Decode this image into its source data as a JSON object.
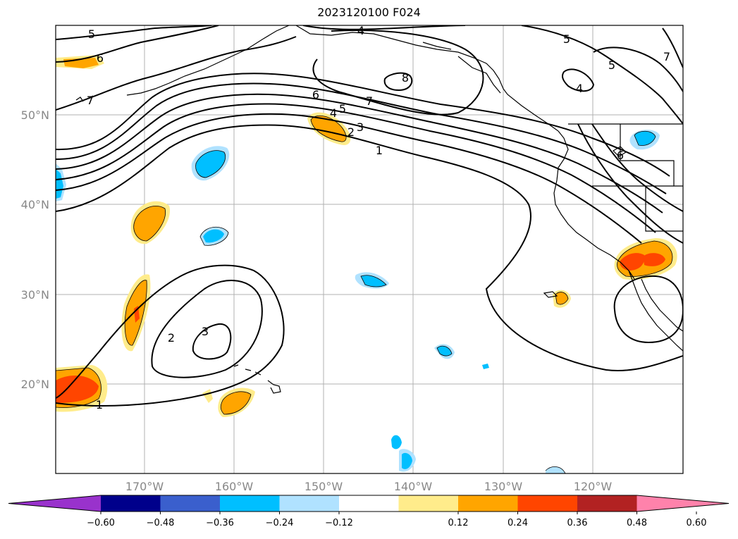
{
  "title": "2023120100 F024",
  "map": {
    "lat_labels": [
      "50°N",
      "40°N",
      "30°N",
      "20°N"
    ],
    "lon_labels": [
      "170°W",
      "160°W",
      "150°W",
      "140°W",
      "130°W",
      "120°W"
    ]
  },
  "contour_labels": [
    "5",
    "6",
    "7",
    "4",
    "8",
    "7",
    "6",
    "5",
    "4",
    "3",
    "2",
    "1",
    "5",
    "4",
    "5",
    "6",
    "2",
    "3",
    "1",
    "7"
  ],
  "colorbar": {
    "colors": [
      "#9932cc",
      "#00008b",
      "#3a5fcd",
      "#00bfff",
      "#b0e2ff",
      "#ffffff",
      "#ffec8b",
      "#ffa500",
      "#ff4500",
      "#b22222",
      "#ff82ab"
    ],
    "ticks": [
      "−0.60",
      "−0.48",
      "−0.36",
      "−0.24",
      "−0.12",
      "0.12",
      "0.24",
      "0.36",
      "0.48",
      "0.60"
    ]
  }
}
